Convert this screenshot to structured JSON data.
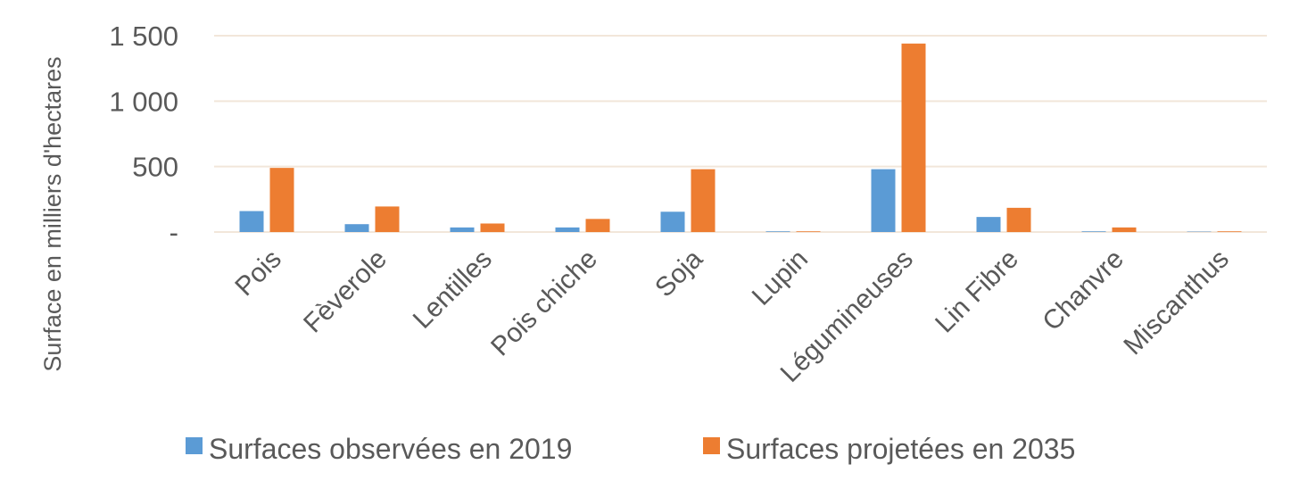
{
  "chart_data": {
    "type": "bar",
    "title": "",
    "xlabel": "",
    "ylabel": "Surface en milliers d'hectares",
    "ylim": [
      0,
      1500
    ],
    "yticks": [
      {
        "value": 0,
        "label": "-"
      },
      {
        "value": 500,
        "label": "500"
      },
      {
        "value": 1000,
        "label": "1 000"
      },
      {
        "value": 1500,
        "label": "1 500"
      }
    ],
    "grid": true,
    "legend_position": "bottom",
    "categories": [
      "Pois",
      "Fèverole",
      "Lentilles",
      "Pois chiche",
      "Soja",
      "Lupin",
      "Légumineuses",
      "Lin Fibre",
      "Chanvre",
      "Miscanthus"
    ],
    "series": [
      {
        "name": "Surfaces observées en 2019",
        "color": "#5B9BD5",
        "values": [
          160,
          60,
          35,
          35,
          155,
          5,
          480,
          115,
          5,
          3
        ]
      },
      {
        "name": "Surfaces projetées en 2035",
        "color": "#ED7D31",
        "values": [
          490,
          195,
          65,
          100,
          480,
          5,
          1440,
          185,
          35,
          5
        ]
      }
    ],
    "gridline_color": "#F2E6DA"
  }
}
